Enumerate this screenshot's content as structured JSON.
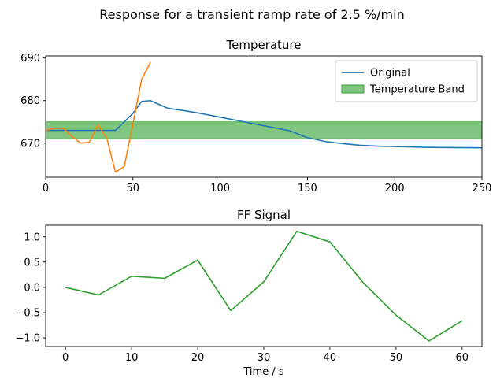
{
  "suptitle": "Response for a transient ramp rate of 2.5 %/min",
  "chart_data": [
    {
      "type": "line",
      "title": "Temperature",
      "xlabel": "",
      "ylabel": "",
      "xlim": [
        0,
        250
      ],
      "ylim": [
        662,
        690.5
      ],
      "xticks": [
        0,
        50,
        100,
        150,
        200,
        250
      ],
      "yticks": [
        670,
        680,
        690
      ],
      "grid": false,
      "legend": "upper right",
      "band": {
        "name": "Temperature Band",
        "y0": 671,
        "y1": 675,
        "color": "#2ca02c"
      },
      "series": [
        {
          "name": "Original",
          "color": "#1f77b4",
          "x": [
            0,
            5,
            10,
            20,
            30,
            40,
            50,
            55,
            60,
            70,
            80,
            90,
            100,
            110,
            120,
            130,
            140,
            150,
            160,
            170,
            180,
            190,
            200,
            220,
            250
          ],
          "y": [
            673,
            673,
            673,
            673,
            673,
            673,
            677,
            679.8,
            680,
            678.2,
            677.6,
            676.9,
            676.1,
            675.3,
            674.5,
            673.7,
            672.9,
            671.3,
            670.4,
            669.9,
            669.5,
            669.3,
            669.2,
            669.0,
            668.9
          ]
        },
        {
          "name": "",
          "color": "#ff7f0e",
          "x": [
            0,
            5,
            10,
            15,
            20,
            25,
            30,
            35,
            40,
            45,
            50,
            55,
            60
          ],
          "y": [
            673,
            673.5,
            673.5,
            671.6,
            670,
            670.2,
            674.3,
            671.2,
            663.2,
            664.5,
            674.5,
            685,
            689
          ]
        }
      ]
    },
    {
      "type": "line",
      "title": "FF Signal",
      "xlabel": "Time / s",
      "ylabel": "",
      "xlim": [
        -3,
        63
      ],
      "ylim": [
        -1.17,
        1.23
      ],
      "xticks": [
        0,
        10,
        20,
        30,
        40,
        50,
        60
      ],
      "yticks": [
        1.0,
        0.5,
        0.0,
        -0.5,
        -1.0
      ],
      "ytick_labels": [
        "1.0",
        "0.5",
        "0.0",
        "−0.5",
        "−1.0"
      ],
      "grid": false,
      "series": [
        {
          "name": "",
          "color": "#2ca02c",
          "x": [
            0,
            5,
            10,
            15,
            20,
            25,
            30,
            35,
            40,
            45,
            50,
            55,
            60
          ],
          "y": [
            0.0,
            -0.15,
            0.22,
            0.18,
            0.54,
            -0.46,
            0.11,
            1.11,
            0.9,
            0.1,
            -0.55,
            -1.06,
            -0.66
          ]
        }
      ]
    }
  ]
}
